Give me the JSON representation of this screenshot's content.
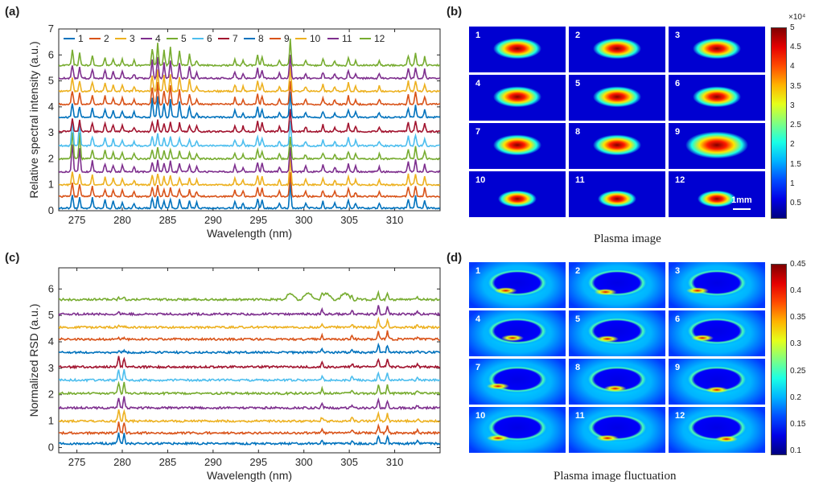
{
  "panels": {
    "a_label": "(a)",
    "b_label": "(b)",
    "c_label": "(c)",
    "d_label": "(d)"
  },
  "captions": {
    "b": "Plasma image",
    "d": "Plasma image fluctuation"
  },
  "chart_data": [
    {
      "id": "a",
      "type": "line",
      "xlabel": "Wavelength (nm)",
      "ylabel": "Relative spectral intensity (a.u.)",
      "xlim": [
        273,
        315
      ],
      "ylim": [
        0,
        7
      ],
      "xticks": [
        275,
        280,
        285,
        290,
        295,
        300,
        305,
        310
      ],
      "yticks": [
        0,
        1,
        2,
        3,
        4,
        5,
        6,
        7
      ],
      "legend": [
        "1",
        "2",
        "3",
        "4",
        "5",
        "6",
        "7",
        "8",
        "9",
        "10",
        "11",
        "12"
      ],
      "legend_position": "top",
      "colors": [
        "#0072BD",
        "#D95319",
        "#EDB120",
        "#7E2F8E",
        "#77AC30",
        "#4DBEEE",
        "#A2142F",
        "#0072BD",
        "#D95319",
        "#EDB120",
        "#7E2F8E",
        "#77AC30"
      ],
      "series_offsets": [
        0.1,
        0.55,
        1.0,
        1.5,
        2.0,
        2.5,
        3.05,
        3.6,
        4.1,
        4.6,
        5.1,
        5.6
      ],
      "peaks_nm": [
        274.5,
        275.3,
        276.7,
        278.1,
        279.0,
        280.0,
        281.3,
        283.3,
        283.9,
        284.6,
        285.3,
        286.3,
        287.4,
        288.2,
        292.4,
        293.3,
        294.9,
        295.4,
        297.3,
        298.5,
        300.2,
        302.1,
        303.4,
        304.9,
        305.7,
        308.3,
        311.5,
        312.3,
        313.3
      ],
      "peak_heights": [
        0.9,
        0.7,
        0.6,
        0.5,
        0.4,
        0.4,
        0.3,
        0.6,
        0.7,
        0.5,
        0.6,
        0.5,
        0.4,
        0.3,
        0.4,
        0.3,
        0.6,
        0.5,
        0.3,
        1.5,
        0.3,
        0.4,
        0.3,
        0.5,
        0.3,
        0.3,
        0.6,
        0.7,
        0.5
      ]
    },
    {
      "id": "c",
      "type": "line",
      "xlabel": "Wavelength (nm)",
      "ylabel": "Normalized RSD (a.u.)",
      "xlim": [
        273,
        315
      ],
      "ylim": [
        -0.2,
        6.8
      ],
      "xticks": [
        275,
        280,
        285,
        290,
        295,
        300,
        305,
        310
      ],
      "yticks": [
        0,
        1,
        2,
        3,
        4,
        5,
        6
      ],
      "colors": [
        "#0072BD",
        "#D95319",
        "#EDB120",
        "#7E2F8E",
        "#77AC30",
        "#4DBEEE",
        "#A2142F",
        "#0072BD",
        "#D95319",
        "#EDB120",
        "#7E2F8E",
        "#77AC30"
      ],
      "series_offsets": [
        0.15,
        0.55,
        1.0,
        1.5,
        2.05,
        2.55,
        3.05,
        3.6,
        4.1,
        4.55,
        5.05,
        5.6
      ],
      "peaks_nm": [
        279.6,
        280.2,
        302.0,
        305.3,
        308.2,
        309.2,
        312.5
      ],
      "peak_heights": [
        0.7,
        0.6,
        0.25,
        0.2,
        0.5,
        0.45,
        0.15
      ]
    }
  ],
  "images_b": {
    "labels": [
      "1",
      "2",
      "3",
      "4",
      "5",
      "6",
      "7",
      "8",
      "9",
      "10",
      "11",
      "12"
    ],
    "scalebar": "1mm",
    "colorbar": {
      "exponent": "×10⁴",
      "ticks": [
        "5",
        "4.5",
        "4",
        "3.5",
        "3",
        "2.5",
        "2",
        "1.5",
        "1",
        "0.5"
      ]
    }
  },
  "images_d": {
    "labels": [
      "1",
      "2",
      "3",
      "4",
      "5",
      "6",
      "7",
      "8",
      "9",
      "10",
      "11",
      "12"
    ],
    "colorbar": {
      "ticks": [
        "0.45",
        "0.4",
        "0.35",
        "0.3",
        "0.25",
        "0.2",
        "0.15",
        "0.1"
      ]
    }
  }
}
